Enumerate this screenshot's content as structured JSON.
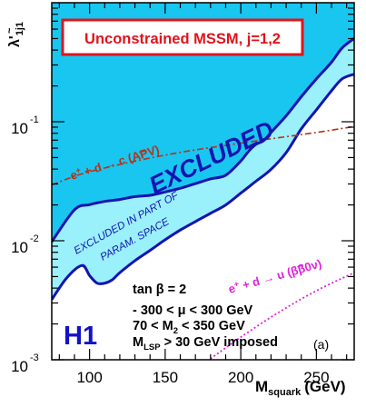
{
  "chart_data": {
    "type": "area",
    "title": "Unconstrained MSSM, j=1,2",
    "xlabel": "M",
    "xlabel_sub": "squark",
    "xlabel_unit": "(GeV)",
    "ylabel": "λ'",
    "ylabel_sub": "1j1",
    "ylabel_tilde": "~",
    "xlim": [
      75,
      275
    ],
    "ylim": [
      0.001,
      1
    ],
    "yscale": "log",
    "x_ticks": [
      100,
      150,
      200,
      250
    ],
    "y_ticks": [
      {
        "value": 0.001,
        "base": "10",
        "exp": "-3"
      },
      {
        "value": 0.01,
        "base": "10",
        "exp": "-2"
      },
      {
        "value": 0.1,
        "base": "10",
        "exp": "-1"
      }
    ],
    "grid": false,
    "colors": {
      "excluded_fill": "#19c6f0",
      "partial_fill": "#9af0fb",
      "boundary": "#1414b0",
      "apv_line": "#b83218",
      "beta_line": "#e020dc",
      "title_box": "#e0141c",
      "h1_text": "#1212c8"
    },
    "series": [
      {
        "name": "EXCLUDED",
        "x": [
          75,
          90,
          100,
          110,
          120,
          130,
          140,
          150,
          160,
          170,
          180,
          190,
          200,
          205,
          210,
          215,
          220,
          230,
          240,
          250,
          260,
          267,
          275
        ],
        "y": [
          0.0098,
          0.0182,
          0.0201,
          0.0214,
          0.0222,
          0.0235,
          0.0241,
          0.0257,
          0.0276,
          0.0302,
          0.0331,
          0.0355,
          0.0468,
          0.0562,
          0.0645,
          0.0692,
          0.0813,
          0.1122,
          0.1622,
          0.2291,
          0.3162,
          0.4169,
          0.5012
        ]
      },
      {
        "name": "EXCLUDED IN PART OF PARAM. SPACE",
        "x": [
          75,
          85,
          95,
          100,
          105,
          110,
          115,
          120,
          130,
          140,
          150,
          160,
          170,
          180,
          190,
          200,
          210,
          220,
          230,
          240,
          250,
          260,
          267,
          275
        ],
        "y": [
          0.0032,
          0.0049,
          0.0062,
          0.0051,
          0.0044,
          0.0044,
          0.0047,
          0.0054,
          0.0068,
          0.0083,
          0.0102,
          0.0123,
          0.0145,
          0.017,
          0.02,
          0.0251,
          0.0316,
          0.0398,
          0.055,
          0.087,
          0.1259,
          0.182,
          0.2291,
          0.2511
        ]
      },
      {
        "name": "e+ + d → c̃ (APV)",
        "x": [
          75,
          100,
          150,
          200,
          250,
          275
        ],
        "y": [
          0.0295,
          0.038,
          0.0525,
          0.0661,
          0.0813,
          0.0912
        ]
      },
      {
        "name": "e+ + d → ũ (ββ0ν)",
        "x": [
          180,
          200,
          225,
          250,
          275
        ],
        "y": [
          0.00102,
          0.00155,
          0.0025,
          0.0038,
          0.0054
        ]
      }
    ],
    "annotations": {
      "excluded": "EXCLUDED",
      "partial_line1": "EXCLUDED IN PART OF",
      "partial_line2": "PARAM. SPACE",
      "apv": {
        "pre": "e",
        "sup": "+",
        "mid": " + d → ",
        "q": "c",
        "tilde": "~",
        "post": " (APV)"
      },
      "beta": {
        "pre": "e",
        "sup": "+",
        "mid": " + d → ",
        "q": "u",
        "tilde": "~",
        "post": " (ββ0ν)"
      },
      "params_line1": "tan β = 2",
      "params_line2": "- 300 < μ < 300 GeV",
      "params_line3_pre": "70 < M",
      "params_line3_sub": "2",
      "params_line3_post": " < 350 GeV",
      "params_line4_pre": "M",
      "params_line4_sub": "LSP",
      "params_line4_post": " > 30 GeV imposed",
      "h1": "H1",
      "panel": "(a)"
    }
  }
}
